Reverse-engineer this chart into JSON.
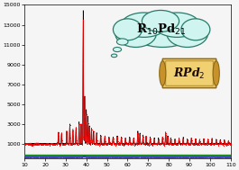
{
  "xlim": [
    10,
    110
  ],
  "ylim": [
    -500,
    15000
  ],
  "yticks": [
    1000,
    3000,
    5000,
    7000,
    9000,
    11000,
    13000,
    15000
  ],
  "xticks": [
    10,
    20,
    30,
    40,
    50,
    60,
    70,
    80,
    90,
    100,
    110
  ],
  "background_color": "#f5f5f5",
  "plot_bg_color": "#f5f5f5",
  "thought_bubble_color": "#d0f5f0",
  "thought_bubble_edge": "#2a7a6a",
  "thought_bubble_text": "R$_{10}$Pd$_{21}$",
  "scroll_fill": "#d4a843",
  "scroll_text": "RPd$_{2}$",
  "green_bar_ymin": -230,
  "green_bar_ymax": -100,
  "blue_line_y": -370,
  "green_color": "#1a8a1a",
  "blue_color": "#3030cc"
}
